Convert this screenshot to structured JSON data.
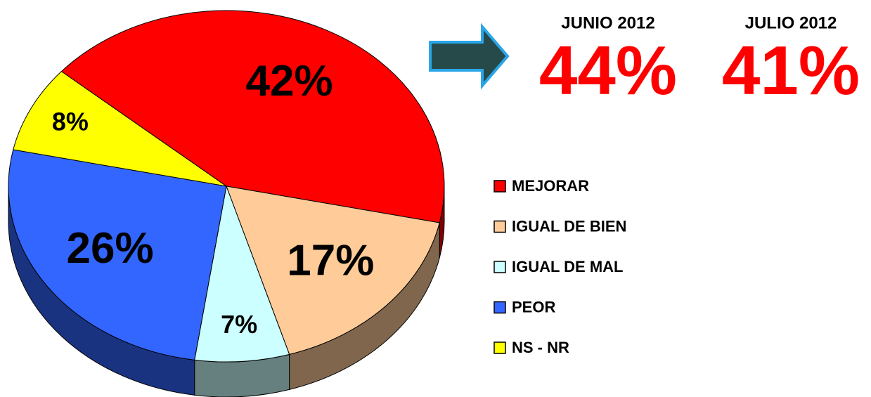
{
  "chart_data": {
    "type": "pie",
    "categories": [
      "MEJORAR",
      "IGUAL DE BIEN",
      "IGUAL DE MAL",
      "PEOR",
      "NS - NR"
    ],
    "values": [
      42,
      17,
      7,
      26,
      8
    ],
    "value_labels": [
      "42%",
      "17%",
      "7%",
      "26%",
      "8%"
    ],
    "colors": [
      "#ff0000",
      "#ffcc99",
      "#ccffff",
      "#3366ff",
      "#ffff00"
    ],
    "comparisons": [
      {
        "label": "JUNIO 2012",
        "value": 44,
        "value_label": "44%"
      },
      {
        "label": "JULIO 2012",
        "value": 41,
        "value_label": "41%"
      }
    ]
  }
}
